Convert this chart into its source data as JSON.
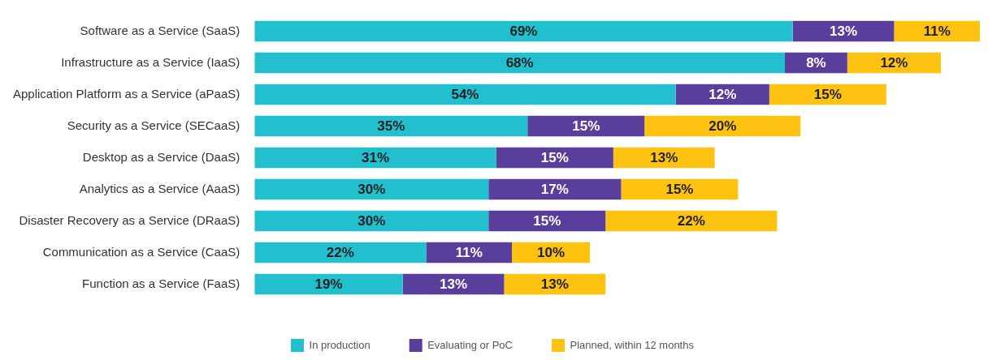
{
  "chart_data": {
    "type": "bar",
    "orientation": "horizontal",
    "stacked": true,
    "legend": "bottom",
    "categories": [
      "Software as a Service (SaaS)",
      "Infrastructure as a Service (IaaS)",
      "Application Platform as a Service (aPaaS)",
      "Security as a Service (SECaaS)",
      "Desktop as a Service (DaaS)",
      "Analytics as a Service (AaaS)",
      "Disaster Recovery as a Service (DRaaS)",
      "Communication as a Service (CaaS)",
      "Function as a Service (FaaS)"
    ],
    "series": [
      {
        "name": "In production",
        "color": "#22bfcf",
        "values": [
          69,
          68,
          54,
          35,
          31,
          30,
          30,
          22,
          19
        ],
        "value_labels": [
          "69%",
          "68%",
          "54%",
          "35%",
          "31%",
          "30%",
          "30%",
          "22%",
          "19%"
        ]
      },
      {
        "name": "Evaluating or PoC",
        "color": "#5a3e9b",
        "values": [
          13,
          8,
          12,
          15,
          15,
          17,
          15,
          11,
          13
        ],
        "value_labels": [
          "13%",
          "8%",
          "12%",
          "15%",
          "15%",
          "17%",
          "15%",
          "11%",
          "13%"
        ]
      },
      {
        "name": "Planned, within 12 months",
        "color": "#fec211",
        "values": [
          11,
          12,
          15,
          20,
          13,
          15,
          22,
          10,
          13
        ],
        "value_labels": [
          "11%",
          "12%",
          "15%",
          "20%",
          "13%",
          "15%",
          "22%",
          "10%",
          "13%"
        ]
      }
    ]
  }
}
